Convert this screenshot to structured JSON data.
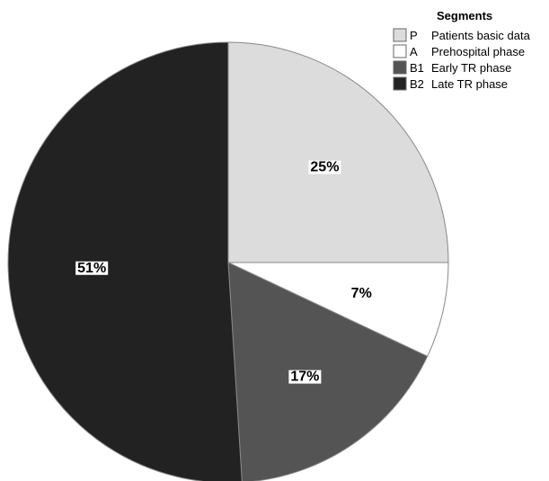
{
  "chart_data": {
    "type": "pie",
    "legend_title": "Segments",
    "legend_position": "top-right",
    "start_angle": "12 o'clock",
    "direction": "clockwise",
    "slices": [
      {
        "code": "P",
        "label": "Patients basic data",
        "value": 25,
        "display": "25%",
        "color": "#dcdcdc"
      },
      {
        "code": "A",
        "label": "Prehospital phase",
        "value": 7,
        "display": "7%",
        "color": "#ffffff"
      },
      {
        "code": "B1",
        "label": "Early TR phase",
        "value": 17,
        "display": "17%",
        "color": "#545454"
      },
      {
        "code": "B2",
        "label": "Late TR phase",
        "value": 51,
        "display": "51%",
        "color": "#222222"
      }
    ]
  }
}
